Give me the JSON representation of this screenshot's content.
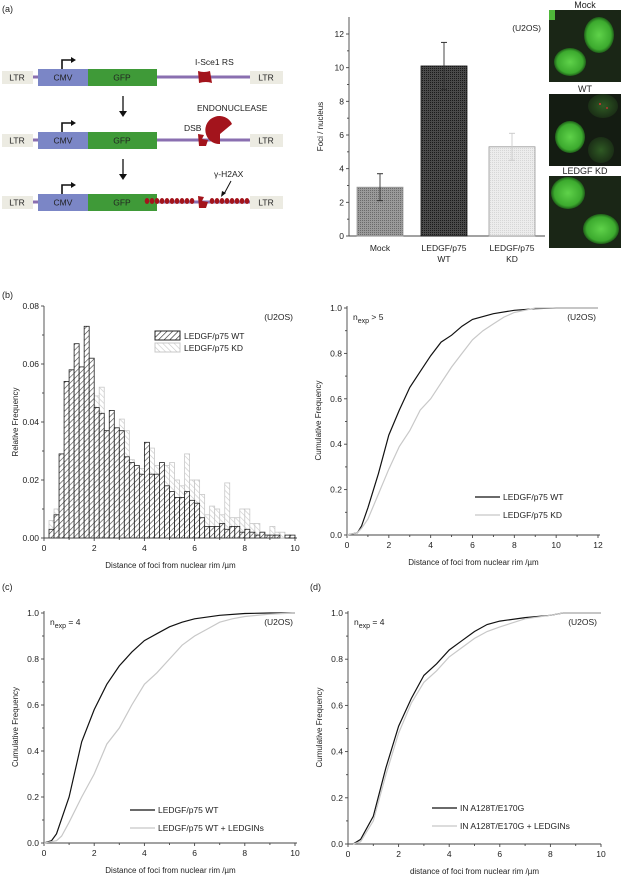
{
  "panels": {
    "a": "(a)",
    "b": "(b)",
    "c": "(c)",
    "d": "(d)"
  },
  "diagram": {
    "ltr": "LTR",
    "cmv": "CMV",
    "gfp": "GFP",
    "isce1": "I-Sce1 RS",
    "endonuclease": "ENDONUCLEASE",
    "dsb": "DSB",
    "h2ax": "γ-H2AX",
    "colors": {
      "cmv": "#7b86c6",
      "gfp": "#3f9a38",
      "line": "#8a6fb0",
      "ltr": "#ecebe2",
      "red": "#a3141c"
    }
  },
  "micrographs": {
    "mock": "Mock",
    "wt": "WT",
    "kd": "LEDGF KD"
  },
  "chart_data": [
    {
      "id": "bar",
      "type": "bar",
      "categories": [
        "Mock",
        "LEDGF/p75\nWT",
        "LEDGF/p75\nKD"
      ],
      "values": [
        2.9,
        10.1,
        5.3
      ],
      "errors": [
        0.8,
        1.4,
        0.8
      ],
      "bar_colors": [
        "#8f8f8f",
        "#3a3a3a",
        "#e2e2e2"
      ],
      "ylabel": "Foci / nucleus",
      "xlabel": "",
      "ylim": [
        0,
        13
      ],
      "yticks": [
        "0",
        "2",
        "4",
        "6",
        "8",
        "10",
        "12"
      ],
      "annotation": "(U2OS)"
    },
    {
      "id": "hist",
      "type": "bar",
      "bin_width": 0.2,
      "bin_starts_from": 0.2,
      "xlabel": "Distance of foci from nuclear rim /µm",
      "ylabel": "Relative Frequency",
      "xlim": [
        0,
        10
      ],
      "ylim": [
        0,
        0.08
      ],
      "xticks": [
        "0",
        "2",
        "4",
        "6",
        "8",
        "10"
      ],
      "yticks": [
        "0.00",
        "0.02",
        "0.04",
        "0.06",
        "0.08"
      ],
      "annotation": "(U2OS)",
      "legend": "top-right",
      "series": [
        {
          "name": "LEDGF/p75 KD",
          "color": "#c8c8c8",
          "values": [
            0.006,
            0.01,
            0.018,
            0.022,
            0.025,
            0.042,
            0.045,
            0.05,
            0.05,
            0.049,
            0.052,
            0.037,
            0.038,
            0.032,
            0.041,
            0.037,
            0.027,
            0.023,
            0.024,
            0.029,
            0.031,
            0.025,
            0.023,
            0.025,
            0.026,
            0.02,
            0.018,
            0.029,
            0.02,
            0.02,
            0.015,
            0.008,
            0.011,
            0.01,
            0.008,
            0.019,
            0.007,
            0.007,
            0.01,
            0.01,
            0.005,
            0.005,
            0.002,
            0.001,
            0.004,
            0.002,
            0.002,
            0,
            0
          ]
        },
        {
          "name": "LEDGF/p75 WT",
          "color": "#222222",
          "values": [
            0.003,
            0.008,
            0.029,
            0.054,
            0.058,
            0.067,
            0.059,
            0.073,
            0.062,
            0.045,
            0.043,
            0.037,
            0.044,
            0.038,
            0.037,
            0.028,
            0.026,
            0.025,
            0.022,
            0.033,
            0.022,
            0.022,
            0.026,
            0.018,
            0.016,
            0.014,
            0.014,
            0.016,
            0.013,
            0.012,
            0.007,
            0.004,
            0.004,
            0.004,
            0.005,
            0.003,
            0.004,
            0.004,
            0.002,
            0.003,
            0.002,
            0.001,
            0.002,
            0.001,
            0.001,
            0.001,
            0,
            0.001,
            0.001
          ]
        }
      ]
    },
    {
      "id": "cdfB",
      "type": "line",
      "xlabel": "Distance of foci from nuclear rim /µm",
      "ylabel": "Cumulative Frequency",
      "xlim": [
        0,
        12
      ],
      "ylim": [
        0,
        1
      ],
      "xticks": [
        "0",
        "2",
        "4",
        "6",
        "8",
        "10",
        "12"
      ],
      "yticks": [
        "0.0",
        "0.2",
        "0.4",
        "0.6",
        "0.8",
        "1.0"
      ],
      "annotation": "(U2OS)",
      "nexp": {
        "base": "n",
        "sub": "exp",
        "rest": "> 5"
      },
      "legend": "bottom-right",
      "series": [
        {
          "name": "LEDGF/p75 WT",
          "color": "#111111",
          "x": [
            0,
            0.5,
            0.7,
            1,
            1.5,
            2,
            2.5,
            3,
            3.5,
            4,
            4.5,
            5,
            5.5,
            6,
            7,
            8,
            9,
            10,
            12
          ],
          "y": [
            0,
            0.01,
            0.04,
            0.12,
            0.27,
            0.44,
            0.55,
            0.65,
            0.72,
            0.79,
            0.85,
            0.88,
            0.92,
            0.95,
            0.975,
            0.99,
            0.997,
            1,
            1
          ]
        },
        {
          "name": "LEDGF/p75 KD",
          "color": "#c8c8c8",
          "x": [
            0,
            0.5,
            0.7,
            1,
            1.5,
            2,
            2.5,
            3,
            3.5,
            4,
            4.5,
            5,
            5.5,
            6,
            6.5,
            7,
            7.5,
            8,
            8.5,
            9,
            12
          ],
          "y": [
            0,
            0.01,
            0.03,
            0.07,
            0.18,
            0.29,
            0.39,
            0.46,
            0.55,
            0.6,
            0.67,
            0.74,
            0.8,
            0.86,
            0.9,
            0.93,
            0.96,
            0.98,
            0.99,
            1,
            1
          ]
        }
      ]
    },
    {
      "id": "cdfC",
      "type": "line",
      "xlabel": "Distance of foci from nuclear rim /µm",
      "ylabel": "Cumulative Frequency",
      "xlim": [
        0,
        10
      ],
      "ylim": [
        0,
        1
      ],
      "xticks": [
        "0",
        "2",
        "4",
        "6",
        "8",
        "10"
      ],
      "yticks": [
        "0.0",
        "0.2",
        "0.4",
        "0.6",
        "0.8",
        "1.0"
      ],
      "annotation": "(U2OS)",
      "nexp": {
        "base": "n",
        "sub": "exp",
        "rest": "= 4"
      },
      "legend": "bottom-right",
      "series": [
        {
          "name": "LEDGF/p75 WT",
          "color": "#111111",
          "x": [
            0,
            0.3,
            0.5,
            1,
            1.5,
            2,
            2.5,
            3,
            3.5,
            4,
            4.5,
            5,
            5.5,
            6,
            7,
            8,
            9,
            10
          ],
          "y": [
            0,
            0.01,
            0.04,
            0.2,
            0.44,
            0.58,
            0.69,
            0.77,
            0.83,
            0.88,
            0.91,
            0.94,
            0.96,
            0.975,
            0.99,
            0.998,
            1,
            1
          ]
        },
        {
          "name": "LEDGF/p75 WT + LEDGINs",
          "color": "#c8c8c8",
          "x": [
            0,
            0.5,
            0.7,
            1,
            1.5,
            2,
            2.5,
            3,
            3.5,
            4,
            4.5,
            5,
            5.5,
            6,
            6.5,
            7,
            7.5,
            8,
            9,
            10
          ],
          "y": [
            0,
            0.01,
            0.03,
            0.09,
            0.2,
            0.3,
            0.43,
            0.5,
            0.6,
            0.69,
            0.74,
            0.8,
            0.86,
            0.9,
            0.93,
            0.96,
            0.975,
            0.985,
            0.995,
            1
          ]
        }
      ]
    },
    {
      "id": "cdfD",
      "type": "line",
      "xlabel": "distance of foci from nuclear rim /µm",
      "ylabel": "Cumulative Frequency",
      "xlim": [
        0,
        10
      ],
      "ylim": [
        0,
        1
      ],
      "xticks": [
        "0",
        "2",
        "4",
        "6",
        "8",
        "10"
      ],
      "yticks": [
        "0.0",
        "0.2",
        "0.4",
        "0.6",
        "0.8",
        "1.0"
      ],
      "annotation": "(U2OS)",
      "nexp": {
        "base": "n",
        "sub": "exp",
        "rest": "= 4"
      },
      "legend": "bottom-right",
      "series": [
        {
          "name": "IN A128T/E170G",
          "color": "#111111",
          "x": [
            0.2,
            0.5,
            1,
            1.5,
            2,
            2.5,
            3,
            3.5,
            4,
            4.5,
            5,
            5.5,
            6,
            7,
            8,
            8.5,
            10
          ],
          "y": [
            0,
            0.02,
            0.12,
            0.33,
            0.51,
            0.63,
            0.73,
            0.78,
            0.84,
            0.88,
            0.92,
            0.95,
            0.965,
            0.98,
            0.99,
            1,
            1
          ]
        },
        {
          "name": "IN A128T/E170G + LEDGINs",
          "color": "#c8c8c8",
          "x": [
            0.2,
            0.5,
            1,
            1.5,
            2,
            2.5,
            3,
            3.5,
            4,
            4.5,
            5,
            5.5,
            6,
            7,
            8,
            8.5,
            10
          ],
          "y": [
            0,
            0.01,
            0.1,
            0.3,
            0.48,
            0.61,
            0.7,
            0.75,
            0.81,
            0.85,
            0.89,
            0.92,
            0.94,
            0.975,
            0.99,
            1,
            1
          ]
        }
      ]
    }
  ]
}
